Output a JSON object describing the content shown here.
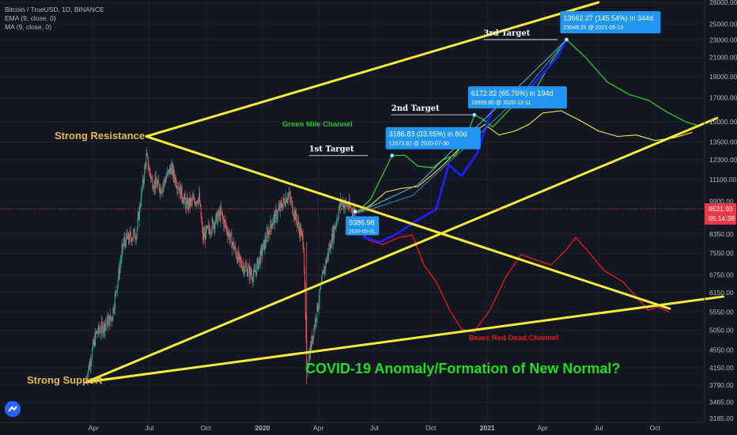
{
  "header": {
    "symbol_line": "Bitcoin / TrueUSD, 1D, BINANCE",
    "ema_line": "EMA (9, close, 0)",
    "ma_line": "MA (9, close, 0)"
  },
  "price_axis": {
    "ticks": [
      "28000.00",
      "25000.00",
      "23000.00",
      "21000.00",
      "19000.00",
      "17000.00",
      "15000.00",
      "13500.00",
      "12300.00",
      "11100.00",
      "9900.00",
      "8350.00",
      "7550.00",
      "6750.00",
      "6150.00",
      "5550.00",
      "5050.00",
      "4550.00",
      "4150.00",
      "3790.00",
      "3465.00",
      "3185.00"
    ],
    "last_price": "9521.93",
    "countdown": "05:14:38",
    "last_price_color": "#f23645"
  },
  "time_axis": {
    "ticks": [
      "Apr",
      "Jul",
      "Oct",
      "2020",
      "Apr",
      "Jul",
      "Oct",
      "2021",
      "Apr",
      "Jul",
      "Oct"
    ]
  },
  "annotations": {
    "strong_resistance": "Strong Resistance",
    "strong_support": "Strong Support",
    "green_mile_channel": "Green Mile Channel",
    "bears_red_dead_channel": "Bears Red Dead Channel",
    "first_target": "1st Target",
    "second_target": "2nd Target",
    "third_target": "3rd Target",
    "headline": "COVID-19 Anomaly/Formation of New Normal?"
  },
  "price_label": {
    "value": "9386.98",
    "date": "2020-05-31"
  },
  "callouts": [
    {
      "line1": "3186.83 (33.95%) in 60d",
      "line2": "12573.81 @ 2020-07-30"
    },
    {
      "line1": "6172.82 (65.76%) in 194d",
      "line2": "15559.80 @ 2020-12-11"
    },
    {
      "line1": "13662.27 (145.54%) in 344d",
      "line2": "23049.25 @ 2021-05-10"
    }
  ],
  "colors": {
    "background": "#131722",
    "trendline": "#f5eb3b",
    "green_channel": "#26c126",
    "red_channel": "#e0171b",
    "blue_path": "#1d1df0",
    "callout_bg": "#2196f3",
    "headline": "#22dd22",
    "candle_up": "#26a69a",
    "candle_down": "#ef5350"
  },
  "chart_data": {
    "type": "candlestick",
    "title": "Bitcoin / TrueUSD, 1D, BINANCE",
    "y_scale": "log",
    "ylim": [
      3185,
      28000
    ],
    "x_range": [
      "2019-03-15",
      "2021-12-31"
    ],
    "indicators": [
      "EMA (9, close, 0)",
      "MA (9, close, 0)"
    ],
    "price_path": [
      {
        "date": "2019-03-20",
        "price": 3900
      },
      {
        "date": "2019-04-05",
        "price": 4950
      },
      {
        "date": "2019-05-01",
        "price": 5400
      },
      {
        "date": "2019-05-20",
        "price": 8000
      },
      {
        "date": "2019-06-10",
        "price": 8400
      },
      {
        "date": "2019-06-26",
        "price": 12500
      },
      {
        "date": "2019-07-05",
        "price": 11000
      },
      {
        "date": "2019-07-20",
        "price": 10600
      },
      {
        "date": "2019-08-05",
        "price": 11800
      },
      {
        "date": "2019-08-30",
        "price": 9700
      },
      {
        "date": "2019-09-20",
        "price": 10100
      },
      {
        "date": "2019-09-26",
        "price": 8200
      },
      {
        "date": "2019-10-25",
        "price": 9300
      },
      {
        "date": "2019-11-25",
        "price": 7200
      },
      {
        "date": "2019-12-18",
        "price": 6700
      },
      {
        "date": "2020-01-15",
        "price": 8800
      },
      {
        "date": "2020-02-12",
        "price": 10300
      },
      {
        "date": "2020-03-08",
        "price": 8000
      },
      {
        "date": "2020-03-13",
        "price": 4100
      },
      {
        "date": "2020-04-10",
        "price": 6900
      },
      {
        "date": "2020-05-08",
        "price": 9900
      },
      {
        "date": "2020-05-31",
        "price": 9387
      }
    ],
    "blue_projection": [
      {
        "date": "2020-06-02",
        "price": 9200
      },
      {
        "date": "2020-06-15",
        "price": 8200
      },
      {
        "date": "2020-07-10",
        "price": 8000
      },
      {
        "date": "2020-08-10",
        "price": 8400
      },
      {
        "date": "2020-09-05",
        "price": 8900
      },
      {
        "date": "2020-10-10",
        "price": 9500
      },
      {
        "date": "2020-10-30",
        "price": 12000
      },
      {
        "date": "2020-11-20",
        "price": 11300
      },
      {
        "date": "2020-12-15",
        "price": 12700
      },
      {
        "date": "2021-01-15",
        "price": 17000
      },
      {
        "date": "2021-02-15",
        "price": 16200
      },
      {
        "date": "2021-03-10",
        "price": 17800
      },
      {
        "date": "2021-04-25",
        "price": 21000
      },
      {
        "date": "2021-05-10",
        "price": 23049
      }
    ],
    "green_channel": [
      {
        "date": "2020-06-01",
        "price": 9300
      },
      {
        "date": "2020-06-25",
        "price": 10000
      },
      {
        "date": "2020-07-30",
        "price": 12574
      },
      {
        "date": "2020-08-20",
        "price": 12600
      },
      {
        "date": "2020-09-10",
        "price": 11900
      },
      {
        "date": "2020-10-05",
        "price": 11800
      },
      {
        "date": "2020-10-20",
        "price": 12300
      },
      {
        "date": "2020-11-10",
        "price": 12600
      },
      {
        "date": "2020-11-25",
        "price": 13500
      },
      {
        "date": "2020-12-11",
        "price": 15560
      },
      {
        "date": "2020-12-25",
        "price": 15200
      },
      {
        "date": "2021-01-10",
        "price": 14600
      },
      {
        "date": "2021-02-10",
        "price": 16200
      },
      {
        "date": "2021-03-15",
        "price": 17200
      },
      {
        "date": "2021-04-15",
        "price": 20500
      },
      {
        "date": "2021-05-10",
        "price": 23049
      },
      {
        "date": "2021-06-10",
        "price": 21000
      },
      {
        "date": "2021-07-15",
        "price": 18500
      },
      {
        "date": "2021-08-20",
        "price": 17300
      },
      {
        "date": "2021-09-20",
        "price": 16800
      },
      {
        "date": "2021-10-20",
        "price": 15800
      },
      {
        "date": "2021-11-20",
        "price": 15000
      },
      {
        "date": "2021-12-10",
        "price": 14700
      }
    ],
    "yellow_projection": [
      {
        "date": "2020-06-01",
        "price": 9300
      },
      {
        "date": "2020-06-25",
        "price": 9700
      },
      {
        "date": "2020-07-20",
        "price": 10400
      },
      {
        "date": "2020-08-15",
        "price": 10600
      },
      {
        "date": "2020-09-10",
        "price": 10700
      },
      {
        "date": "2020-10-01",
        "price": 11300
      },
      {
        "date": "2020-10-25",
        "price": 12100
      },
      {
        "date": "2020-11-20",
        "price": 13200
      },
      {
        "date": "2020-12-10",
        "price": 14200
      },
      {
        "date": "2020-12-28",
        "price": 14800
      },
      {
        "date": "2021-01-20",
        "price": 14000
      },
      {
        "date": "2021-02-15",
        "price": 14300
      },
      {
        "date": "2021-03-10",
        "price": 14800
      },
      {
        "date": "2021-04-01",
        "price": 15700
      },
      {
        "date": "2021-05-01",
        "price": 15900
      },
      {
        "date": "2021-06-01",
        "price": 15100
      },
      {
        "date": "2021-07-01",
        "price": 14300
      },
      {
        "date": "2021-08-01",
        "price": 13900
      },
      {
        "date": "2021-09-01",
        "price": 14000
      },
      {
        "date": "2021-10-01",
        "price": 13600
      },
      {
        "date": "2021-11-01",
        "price": 13800
      },
      {
        "date": "2021-12-01",
        "price": 14200
      }
    ],
    "red_channel": [
      {
        "date": "2020-06-01",
        "price": 9200
      },
      {
        "date": "2020-06-20",
        "price": 8100
      },
      {
        "date": "2020-07-15",
        "price": 7900
      },
      {
        "date": "2020-08-10",
        "price": 8200
      },
      {
        "date": "2020-09-01",
        "price": 8300
      },
      {
        "date": "2020-09-20",
        "price": 7100
      },
      {
        "date": "2020-10-10",
        "price": 6500
      },
      {
        "date": "2020-11-01",
        "price": 5600
      },
      {
        "date": "2020-11-20",
        "price": 5080
      },
      {
        "date": "2020-12-10",
        "price": 5000
      },
      {
        "date": "2021-01-05",
        "price": 5600
      },
      {
        "date": "2021-02-01",
        "price": 6700
      },
      {
        "date": "2021-02-25",
        "price": 7500
      },
      {
        "date": "2021-03-20",
        "price": 7300
      },
      {
        "date": "2021-04-15",
        "price": 7100
      },
      {
        "date": "2021-05-10",
        "price": 7700
      },
      {
        "date": "2021-05-25",
        "price": 8200
      },
      {
        "date": "2021-06-15",
        "price": 7600
      },
      {
        "date": "2021-07-10",
        "price": 6900
      },
      {
        "date": "2021-08-10",
        "price": 6500
      },
      {
        "date": "2021-09-01",
        "price": 6000
      },
      {
        "date": "2021-09-20",
        "price": 5600
      },
      {
        "date": "2021-10-05",
        "price": 5700
      },
      {
        "date": "2021-10-25",
        "price": 5550
      }
    ],
    "trendlines": [
      {
        "name": "Strong Resistance",
        "from": {
          "date": "2019-06-26",
          "price": 13900
        },
        "to": {
          "date": "2021-10-25",
          "price": 5650
        }
      },
      {
        "name": "Upper channel",
        "from": {
          "date": "2019-06-26",
          "price": 13900
        },
        "to": {
          "date": "2021-07-01",
          "price": 28000
        }
      },
      {
        "name": "Rising support",
        "from": {
          "date": "2019-03-20",
          "price": 3850
        },
        "to": {
          "date": "2022-01-10",
          "price": 15300
        }
      },
      {
        "name": "Strong Support",
        "from": {
          "date": "2019-03-20",
          "price": 3850
        },
        "to": {
          "date": "2022-01-20",
          "price": 6020
        }
      }
    ]
  }
}
